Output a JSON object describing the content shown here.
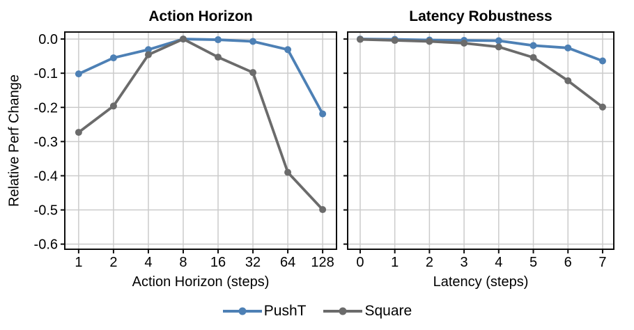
{
  "figure": {
    "ylabel": "Relative Perf Change",
    "background": "#ffffff",
    "grid_color": "#cbcbcb",
    "spine_color": "#0d0d0d",
    "legend": {
      "items": [
        {
          "label": "PushT",
          "color": "#4D80B5"
        },
        {
          "label": "Square",
          "color": "#6B6B6B"
        }
      ]
    }
  },
  "chart_data": [
    {
      "type": "line",
      "title": "Action Horizon",
      "xlabel": "Action Horizon (steps)",
      "ylabel": "Relative Perf Change",
      "x_ticklabels": [
        "1",
        "2",
        "4",
        "8",
        "16",
        "32",
        "64",
        "128"
      ],
      "x_scale": "log2-categorical",
      "y_ticks": [
        0.0,
        -0.1,
        -0.2,
        -0.3,
        -0.4,
        -0.5,
        -0.6
      ],
      "y_ticklabels": [
        "0.0",
        "-0.1",
        "-0.2",
        "-0.3",
        "-0.4",
        "-0.5",
        "-0.6"
      ],
      "ylim": [
        -0.615,
        0.0205
      ],
      "grid": true,
      "legend_position": "below-figure-center",
      "series": [
        {
          "name": "PushT",
          "color": "#4D80B5",
          "x": [
            1,
            2,
            4,
            8,
            16,
            32,
            64,
            128
          ],
          "y": [
            -0.102,
            -0.055,
            -0.031,
            0.0,
            -0.002,
            -0.007,
            -0.031,
            -0.219
          ]
        },
        {
          "name": "Square",
          "color": "#6B6B6B",
          "x": [
            1,
            2,
            4,
            8,
            16,
            32,
            64,
            128
          ],
          "y": [
            -0.273,
            -0.196,
            -0.046,
            0.0,
            -0.053,
            -0.098,
            -0.39,
            -0.499
          ]
        }
      ]
    },
    {
      "type": "line",
      "title": "Latency Robustness",
      "xlabel": "Latency (steps)",
      "ylabel": "Relative Perf Change",
      "x_ticklabels": [
        "0",
        "1",
        "2",
        "3",
        "4",
        "5",
        "6",
        "7"
      ],
      "x_scale": "linear",
      "y_ticks": [
        0.0,
        -0.1,
        -0.2,
        -0.3,
        -0.4,
        -0.5,
        -0.6
      ],
      "y_ticklabels": [
        "0.0",
        "-0.1",
        "-0.2",
        "-0.3",
        "-0.4",
        "-0.5",
        "-0.6"
      ],
      "ylim": [
        -0.615,
        0.0205
      ],
      "grid": true,
      "y_ticklabels_shown": false,
      "series": [
        {
          "name": "PushT",
          "color": "#4D80B5",
          "x": [
            0,
            1,
            2,
            3,
            4,
            5,
            6,
            7
          ],
          "y": [
            0.0,
            -0.001,
            -0.003,
            -0.004,
            -0.005,
            -0.019,
            -0.026,
            -0.064
          ]
        },
        {
          "name": "Square",
          "color": "#6B6B6B",
          "x": [
            0,
            1,
            2,
            3,
            4,
            5,
            6,
            7
          ],
          "y": [
            -0.001,
            -0.004,
            -0.007,
            -0.012,
            -0.023,
            -0.054,
            -0.122,
            -0.199
          ]
        }
      ]
    }
  ]
}
